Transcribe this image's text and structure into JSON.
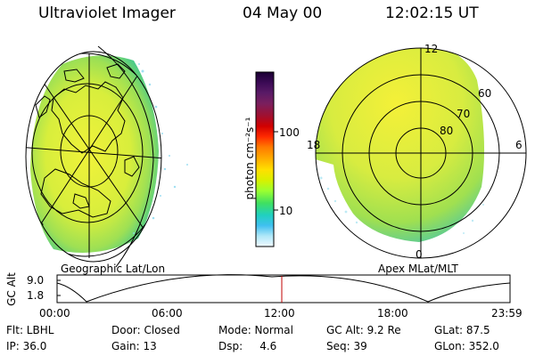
{
  "header": {
    "title": "Ultraviolet Imager",
    "date": "04 May 00",
    "time": "12:02:15 UT"
  },
  "left_panel": {
    "label": "Geographic Lat/Lon"
  },
  "right_panel": {
    "label": "Apex MLat/MLT",
    "lat_labels": [
      "80",
      "70",
      "60"
    ],
    "mlt_labels": [
      "12",
      "18",
      "6",
      "0"
    ]
  },
  "colorbar": {
    "unit_label": "photon cm⁻²s⁻¹",
    "ticks": [
      "100",
      "10"
    ],
    "colors_top_to_bottom": [
      "#1a0033",
      "#3b0a55",
      "#5a1a66",
      "#7a1f5e",
      "#a01030",
      "#d00000",
      "#ff2a00",
      "#ff7a00",
      "#ffb000",
      "#ffe000",
      "#d8f000",
      "#9cff30",
      "#40e060",
      "#20d0c0",
      "#40c0f0",
      "#b0e8f8",
      "#f0f8ff"
    ]
  },
  "timeline": {
    "axis_label": "GC Alt",
    "y_ticks": [
      "9.0",
      "1.8"
    ],
    "x_ticks": [
      "00:00",
      "06:00",
      "12:00",
      "18:00",
      "23:59"
    ],
    "marker_time": "12:02",
    "marker_color": "#c00000"
  },
  "footer": {
    "row1": [
      "Flt: LBHL",
      "Door: Closed",
      "Mode: Normal",
      "GC Alt: 9.2 Re",
      "GLat:  87.5"
    ],
    "row2": [
      "IP: 36.0",
      "Gain: 13",
      "Dsp:     4.6",
      "Seq: 39",
      "GLon: 352.0"
    ]
  },
  "colors": {
    "aurora_core": "#f0f23a",
    "aurora_mid": "#b8e848",
    "aurora_edge": "#3cc890"
  }
}
